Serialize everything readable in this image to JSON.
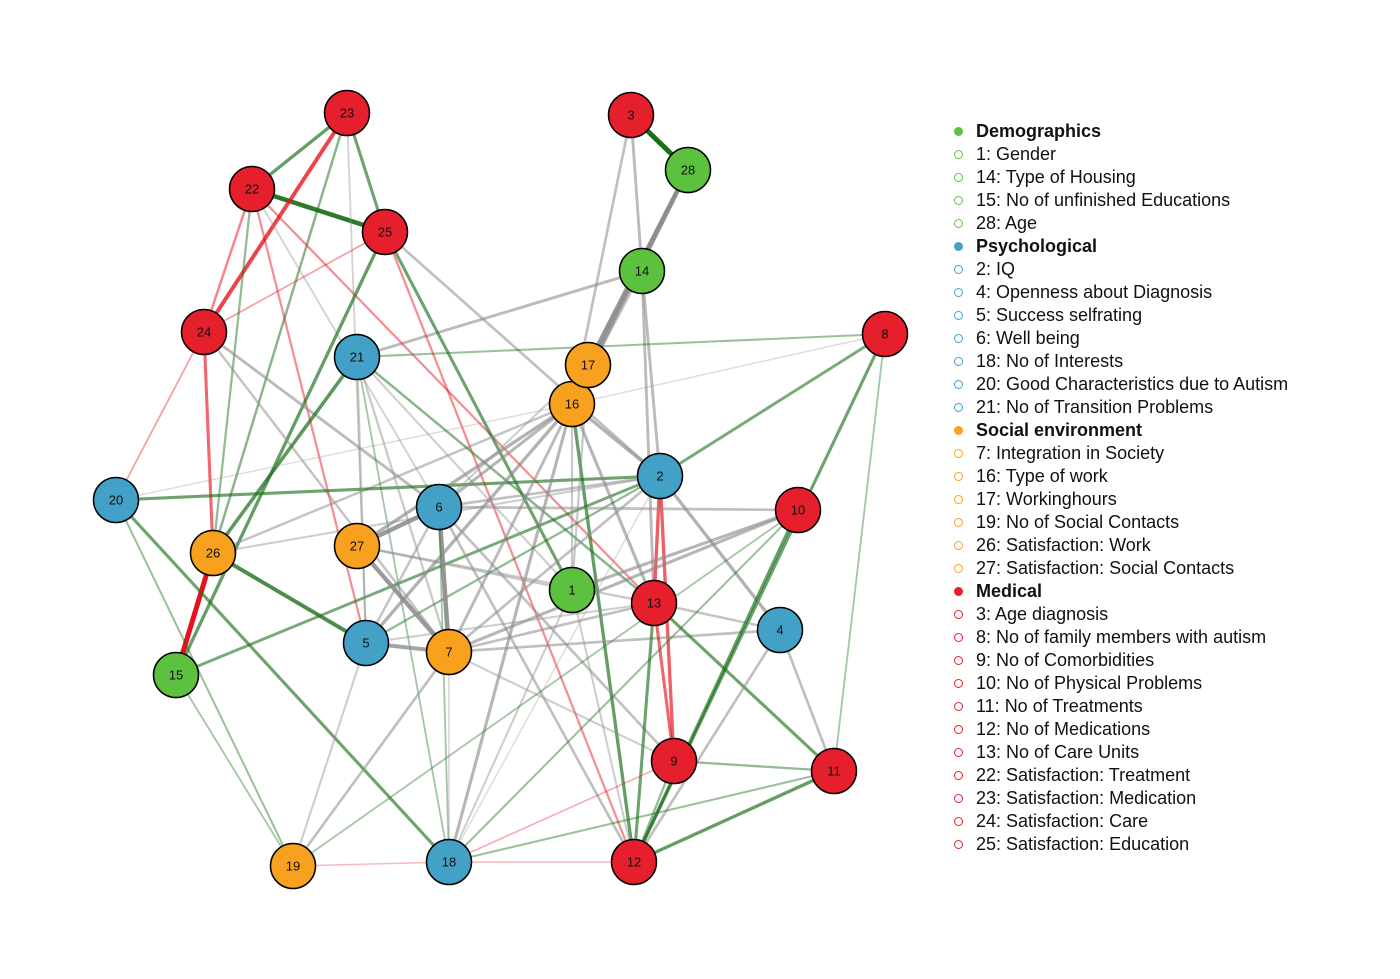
{
  "groups": [
    {
      "name": "Demographics",
      "color": "#5dc140",
      "items": [
        "1: Gender",
        "14: Type of Housing",
        "15: No of unfinished Educations",
        "28: Age"
      ]
    },
    {
      "name": "Psychological",
      "color": "#43a0c7",
      "items": [
        "2: IQ",
        "4: Openness about Diagnosis",
        "5: Success selfrating",
        "6: Well being",
        "18: No of Interests",
        "20: Good Characteristics due to Autism",
        "21: No of Transition Problems"
      ]
    },
    {
      "name": "Social environment",
      "color": "#f7a11f",
      "items": [
        "7: Integration in Society",
        "16: Type of work",
        "17: Workinghours",
        "19: No of Social Contacts",
        "26: Satisfaction: Work",
        "27: Satisfaction: Social Contacts"
      ]
    },
    {
      "name": "Medical",
      "color": "#e61f2d",
      "items": [
        "3: Age diagnosis",
        "8: No of family members with autism",
        "9: No of Comorbidities",
        "10: No of Physical Problems",
        "11: No of Treatments",
        "12: No of Medications",
        "13: No of Care Units",
        "22: Satisfaction: Treatment",
        "23: Satisfaction: Medication",
        "24: Satisfaction: Care",
        "25: Satisfaction: Education"
      ]
    }
  ],
  "nodes": [
    {
      "id": "1",
      "group": "Demographics"
    },
    {
      "id": "2",
      "group": "Psychological"
    },
    {
      "id": "3",
      "group": "Medical"
    },
    {
      "id": "4",
      "group": "Psychological"
    },
    {
      "id": "5",
      "group": "Psychological"
    },
    {
      "id": "6",
      "group": "Psychological"
    },
    {
      "id": "7",
      "group": "Social environment"
    },
    {
      "id": "8",
      "group": "Medical"
    },
    {
      "id": "9",
      "group": "Medical"
    },
    {
      "id": "10",
      "group": "Medical"
    },
    {
      "id": "11",
      "group": "Medical"
    },
    {
      "id": "12",
      "group": "Medical"
    },
    {
      "id": "13",
      "group": "Medical"
    },
    {
      "id": "14",
      "group": "Demographics"
    },
    {
      "id": "15",
      "group": "Demographics"
    },
    {
      "id": "16",
      "group": "Social environment"
    },
    {
      "id": "17",
      "group": "Social environment"
    },
    {
      "id": "18",
      "group": "Psychological"
    },
    {
      "id": "19",
      "group": "Social environment"
    },
    {
      "id": "20",
      "group": "Psychological"
    },
    {
      "id": "21",
      "group": "Psychological"
    },
    {
      "id": "22",
      "group": "Medical"
    },
    {
      "id": "23",
      "group": "Medical"
    },
    {
      "id": "24",
      "group": "Medical"
    },
    {
      "id": "25",
      "group": "Medical"
    },
    {
      "id": "26",
      "group": "Social environment"
    },
    {
      "id": "27",
      "group": "Social environment"
    },
    {
      "id": "28",
      "group": "Demographics"
    }
  ],
  "edge_colors": {
    "positive": "#1a6e1a",
    "negative": "#e8101a",
    "neutral": "#8c8c8c"
  },
  "edges": [
    {
      "source": "3",
      "target": "28",
      "sign": "positive",
      "weight": 1.0
    },
    {
      "source": "28",
      "target": "17",
      "sign": "neutral",
      "weight": 0.9
    },
    {
      "source": "28",
      "target": "16",
      "sign": "neutral",
      "weight": 0.8
    },
    {
      "source": "3",
      "target": "14",
      "sign": "neutral",
      "weight": 0.5
    },
    {
      "source": "3",
      "target": "16",
      "sign": "neutral",
      "weight": 0.45
    },
    {
      "source": "14",
      "target": "2",
      "sign": "neutral",
      "weight": 0.5
    },
    {
      "source": "14",
      "target": "13",
      "sign": "neutral",
      "weight": 0.5
    },
    {
      "source": "14",
      "target": "21",
      "sign": "neutral",
      "weight": 0.5
    },
    {
      "source": "14",
      "target": "16",
      "sign": "neutral",
      "weight": 0.4
    },
    {
      "source": "22",
      "target": "25",
      "sign": "positive",
      "weight": 0.9
    },
    {
      "source": "22",
      "target": "23",
      "sign": "positive",
      "weight": 0.6
    },
    {
      "source": "24",
      "target": "23",
      "sign": "negative",
      "weight": 0.75
    },
    {
      "source": "23",
      "target": "25",
      "sign": "positive",
      "weight": 0.55
    },
    {
      "source": "23",
      "target": "26",
      "sign": "positive",
      "weight": 0.4
    },
    {
      "source": "23",
      "target": "5",
      "sign": "neutral",
      "weight": 0.25
    },
    {
      "source": "22",
      "target": "24",
      "sign": "negative",
      "weight": 0.4
    },
    {
      "source": "22",
      "target": "26",
      "sign": "positive",
      "weight": 0.35
    },
    {
      "source": "22",
      "target": "13",
      "sign": "negative",
      "weight": 0.35
    },
    {
      "source": "22",
      "target": "5",
      "sign": "negative",
      "weight": 0.35
    },
    {
      "source": "22",
      "target": "6",
      "sign": "neutral",
      "weight": 0.25
    },
    {
      "source": "25",
      "target": "15",
      "sign": "positive",
      "weight": 0.6
    },
    {
      "source": "25",
      "target": "12",
      "sign": "negative",
      "weight": 0.35
    },
    {
      "source": "25",
      "target": "2",
      "sign": "neutral",
      "weight": 0.45
    },
    {
      "source": "25",
      "target": "1",
      "sign": "positive",
      "weight": 0.55
    },
    {
      "source": "25",
      "target": "24",
      "sign": "negative",
      "weight": 0.25
    },
    {
      "source": "24",
      "target": "26",
      "sign": "negative",
      "weight": 0.55
    },
    {
      "source": "24",
      "target": "20",
      "sign": "negative",
      "weight": 0.25
    },
    {
      "source": "24",
      "target": "6",
      "sign": "neutral",
      "weight": 0.5
    },
    {
      "source": "24",
      "target": "7",
      "sign": "neutral",
      "weight": 0.4
    },
    {
      "source": "26",
      "target": "15",
      "sign": "negative",
      "weight": 1.0
    },
    {
      "source": "26",
      "target": "5",
      "sign": "positive",
      "weight": 0.75
    },
    {
      "source": "26",
      "target": "16",
      "sign": "neutral",
      "weight": 0.4
    },
    {
      "source": "26",
      "target": "21",
      "sign": "positive",
      "weight": 0.65
    },
    {
      "source": "20",
      "target": "2",
      "sign": "positive",
      "weight": 0.55
    },
    {
      "source": "20",
      "target": "18",
      "sign": "positive",
      "weight": 0.55
    },
    {
      "source": "20",
      "target": "19",
      "sign": "positive",
      "weight": 0.3
    },
    {
      "source": "20",
      "target": "16",
      "sign": "neutral",
      "weight": 0.15
    },
    {
      "source": "15",
      "target": "2",
      "sign": "positive",
      "weight": 0.5
    },
    {
      "source": "15",
      "target": "19",
      "sign": "positive",
      "weight": 0.25
    },
    {
      "source": "21",
      "target": "8",
      "sign": "positive",
      "weight": 0.3
    },
    {
      "source": "21",
      "target": "13",
      "sign": "positive",
      "weight": 0.4
    },
    {
      "source": "21",
      "target": "7",
      "sign": "neutral",
      "weight": 0.35
    },
    {
      "source": "21",
      "target": "5",
      "sign": "neutral",
      "weight": 0.35
    },
    {
      "source": "21",
      "target": "18",
      "sign": "positive",
      "weight": 0.25
    },
    {
      "source": "21",
      "target": "1",
      "sign": "neutral",
      "weight": 0.3
    },
    {
      "source": "16",
      "target": "2",
      "sign": "neutral",
      "weight": 0.6
    },
    {
      "source": "16",
      "target": "13",
      "sign": "neutral",
      "weight": 0.55
    },
    {
      "source": "16",
      "target": "6",
      "sign": "neutral",
      "weight": 0.55
    },
    {
      "source": "16",
      "target": "27",
      "sign": "neutral",
      "weight": 0.6
    },
    {
      "source": "16",
      "target": "5",
      "sign": "neutral",
      "weight": 0.6
    },
    {
      "source": "16",
      "target": "7",
      "sign": "neutral",
      "weight": 0.5
    },
    {
      "source": "16",
      "target": "18",
      "sign": "neutral",
      "weight": 0.55
    },
    {
      "source": "16",
      "target": "12",
      "sign": "positive",
      "weight": 0.6
    },
    {
      "source": "16",
      "target": "1",
      "sign": "neutral",
      "weight": 0.35
    },
    {
      "source": "17",
      "target": "1",
      "sign": "neutral",
      "weight": 0.35
    },
    {
      "source": "17",
      "target": "6",
      "sign": "neutral",
      "weight": 0.3
    },
    {
      "source": "8",
      "target": "12",
      "sign": "positive",
      "weight": 0.55
    },
    {
      "source": "8",
      "target": "2",
      "sign": "positive",
      "weight": 0.5
    },
    {
      "source": "8",
      "target": "11",
      "sign": "positive",
      "weight": 0.25
    },
    {
      "source": "8",
      "target": "16",
      "sign": "neutral",
      "weight": 0.15
    },
    {
      "source": "2",
      "target": "6",
      "sign": "neutral",
      "weight": 0.45
    },
    {
      "source": "2",
      "target": "13",
      "sign": "negative",
      "weight": 0.6
    },
    {
      "source": "2",
      "target": "9",
      "sign": "negative",
      "weight": 0.6
    },
    {
      "source": "2",
      "target": "4",
      "sign": "neutral",
      "weight": 0.6
    },
    {
      "source": "2",
      "target": "26",
      "sign": "neutral",
      "weight": 0.3
    },
    {
      "source": "2",
      "target": "7",
      "sign": "neutral",
      "weight": 0.45
    },
    {
      "source": "2",
      "target": "5",
      "sign": "positive",
      "weight": 0.35
    },
    {
      "source": "6",
      "target": "7",
      "sign": "neutral",
      "weight": 0.9
    },
    {
      "source": "6",
      "target": "27",
      "sign": "neutral",
      "weight": 0.85
    },
    {
      "source": "6",
      "target": "10",
      "sign": "neutral",
      "weight": 0.45
    },
    {
      "source": "6",
      "target": "9",
      "sign": "neutral",
      "weight": 0.45
    },
    {
      "source": "6",
      "target": "18",
      "sign": "positive",
      "weight": 0.25
    },
    {
      "source": "6",
      "target": "5",
      "sign": "neutral",
      "weight": 0.4
    },
    {
      "source": "6",
      "target": "12",
      "sign": "neutral",
      "weight": 0.45
    },
    {
      "source": "27",
      "target": "7",
      "sign": "neutral",
      "weight": 0.85
    },
    {
      "source": "27",
      "target": "1",
      "sign": "neutral",
      "weight": 0.35
    },
    {
      "source": "27",
      "target": "13",
      "sign": "neutral",
      "weight": 0.35
    },
    {
      "source": "5",
      "target": "7",
      "sign": "neutral",
      "weight": 0.75
    },
    {
      "source": "5",
      "target": "19",
      "sign": "neutral",
      "weight": 0.3
    },
    {
      "source": "7",
      "target": "10",
      "sign": "neutral",
      "weight": 0.55
    },
    {
      "source": "7",
      "target": "13",
      "sign": "neutral",
      "weight": 0.45
    },
    {
      "source": "7",
      "target": "4",
      "sign": "neutral",
      "weight": 0.45
    },
    {
      "source": "7",
      "target": "19",
      "sign": "neutral",
      "weight": 0.45
    },
    {
      "source": "7",
      "target": "18",
      "sign": "neutral",
      "weight": 0.2
    },
    {
      "source": "7",
      "target": "9",
      "sign": "neutral",
      "weight": 0.3
    },
    {
      "source": "1",
      "target": "10",
      "sign": "neutral",
      "weight": 0.55
    },
    {
      "source": "1",
      "target": "18",
      "sign": "neutral",
      "weight": 0.3
    },
    {
      "source": "1",
      "target": "12",
      "sign": "neutral",
      "weight": 0.3
    },
    {
      "source": "13",
      "target": "9",
      "sign": "negative",
      "weight": 0.55
    },
    {
      "source": "13",
      "target": "12",
      "sign": "positive",
      "weight": 0.55
    },
    {
      "source": "13",
      "target": "11",
      "sign": "positive",
      "weight": 0.55
    },
    {
      "source": "13",
      "target": "4",
      "sign": "neutral",
      "weight": 0.4
    },
    {
      "source": "13",
      "target": "5",
      "sign": "neutral",
      "weight": 0.3
    },
    {
      "source": "10",
      "target": "12",
      "sign": "positive",
      "weight": 0.6
    },
    {
      "source": "10",
      "target": "19",
      "sign": "positive",
      "weight": 0.25
    },
    {
      "source": "10",
      "target": "18",
      "sign": "positive",
      "weight": 0.3
    },
    {
      "source": "4",
      "target": "12",
      "sign": "neutral",
      "weight": 0.45
    },
    {
      "source": "4",
      "target": "11",
      "sign": "neutral",
      "weight": 0.45
    },
    {
      "source": "9",
      "target": "11",
      "sign": "positive",
      "weight": 0.35
    },
    {
      "source": "9",
      "target": "18",
      "sign": "negative",
      "weight": 0.2
    },
    {
      "source": "9",
      "target": "12",
      "sign": "positive",
      "weight": 0.35
    },
    {
      "source": "11",
      "target": "12",
      "sign": "positive",
      "weight": 0.6
    },
    {
      "source": "11",
      "target": "18",
      "sign": "positive",
      "weight": 0.3
    },
    {
      "source": "18",
      "target": "12",
      "sign": "negative",
      "weight": 0.15
    },
    {
      "source": "19",
      "target": "18",
      "sign": "negative",
      "weight": 0.15
    },
    {
      "source": "18",
      "target": "2",
      "sign": "neutral",
      "weight": 0.15
    }
  ]
}
